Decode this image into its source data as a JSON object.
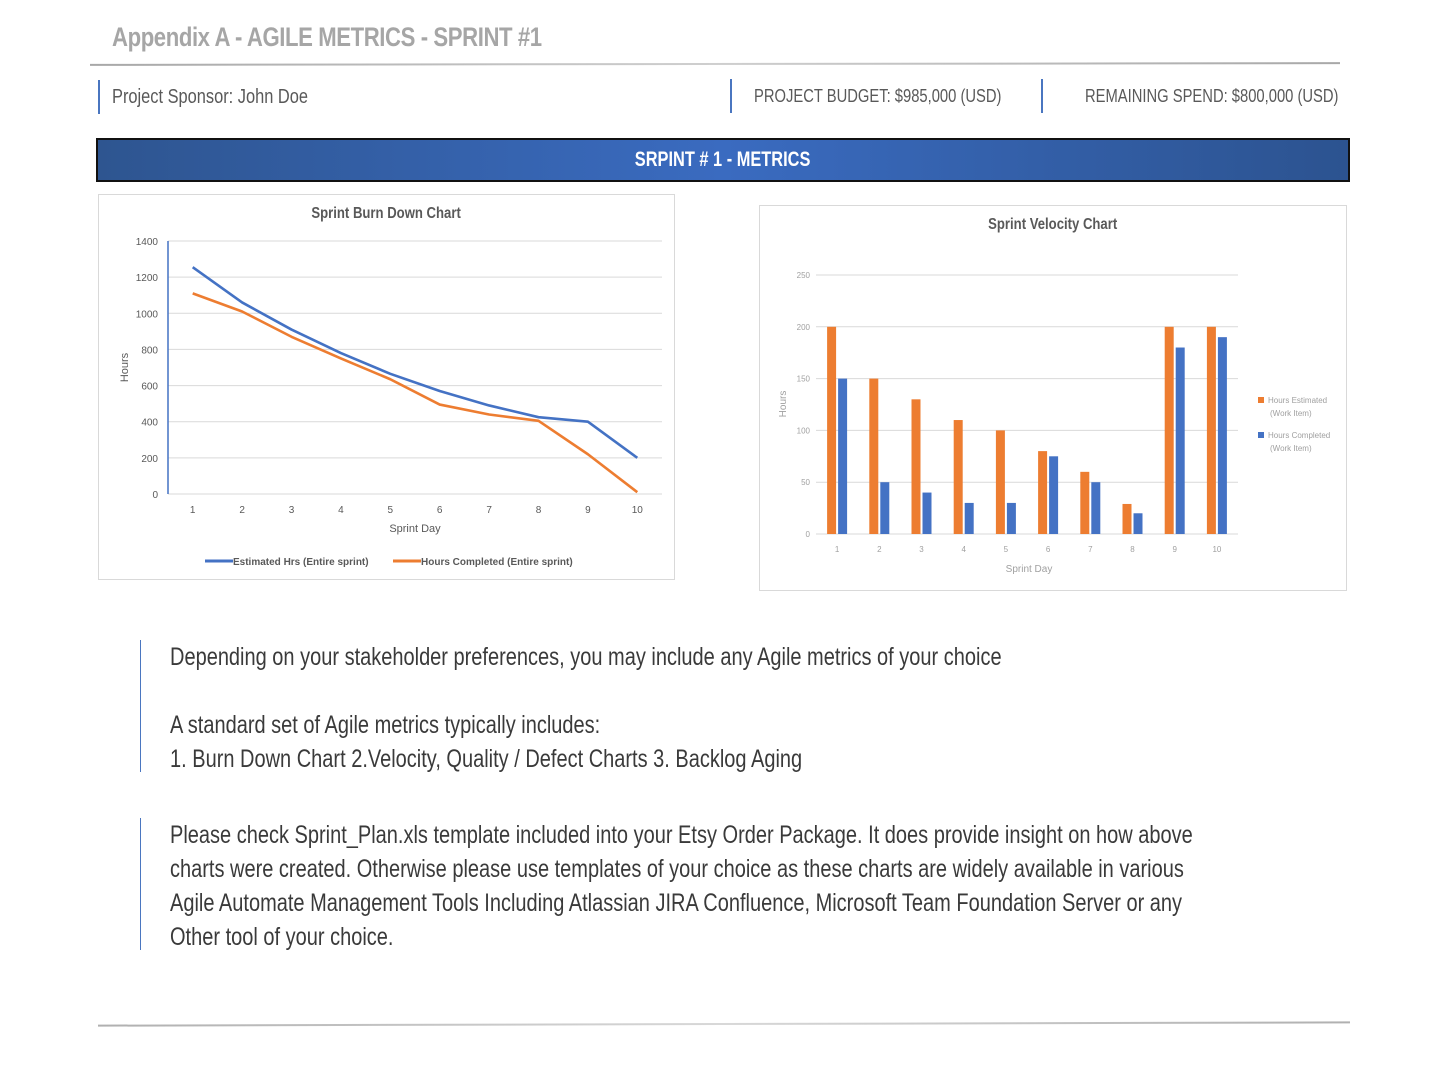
{
  "header": {
    "title": "Appendix A - AGILE METRICS - SPRINT #1",
    "sponsor": "Project Sponsor:  John Doe",
    "budget": "PROJECT BUDGET:  $985,000 (USD)",
    "remaining": "REMAINING SPEND:  $800,000 (USD)"
  },
  "banner": {
    "title": "SRPINT # 1 - METRICS"
  },
  "colors": {
    "blue": "#4472c4",
    "orange": "#ed7d31",
    "banner": "#3a6bc0",
    "accent_rule": "#4a76c0"
  },
  "burndown": {
    "title": "Sprint Burn Down Chart",
    "ylabel": "Hours",
    "xlabel": "Sprint Day",
    "legend": [
      "Estimated Hrs (Entire sprint)",
      "Hours Completed (Entire sprint)"
    ]
  },
  "velocity": {
    "title": "Sprint Velocity Chart",
    "ylabel": "Hours",
    "xlabel": "Sprint Day",
    "legend": [
      "Hours Estimated",
      "(Work Item)",
      "Hours Completed",
      "(Work Item)"
    ]
  },
  "body": {
    "para1": "Depending on your stakeholder preferences, you may include any Agile metrics of your choice",
    "para2_line1": "A standard set of Agile metrics typically includes:",
    "para2_line2": "1. Burn Down Chart  2.Velocity, Quality / Defect Charts  3. Backlog Aging",
    "para3_lines": [
      "Please check Sprint_Plan.xls template included into your Etsy Order Package. It does provide insight on how above",
      "charts were created. Otherwise please use templates of your choice as these charts are widely available in various",
      "Agile Automate Management Tools Including Atlassian JIRA Confluence, Microsoft Team Foundation Server or any",
      "Other tool of your choice."
    ]
  },
  "chart_data": [
    {
      "type": "line",
      "title": "Sprint Burn Down Chart",
      "xlabel": "Sprint Day",
      "ylabel": "Hours",
      "x": [
        1,
        2,
        3,
        4,
        5,
        6,
        7,
        8,
        9,
        10
      ],
      "ylim": [
        0,
        1400
      ],
      "yticks": [
        0,
        200,
        400,
        600,
        800,
        1000,
        1200,
        1400
      ],
      "grid": true,
      "legend_position": "bottom",
      "series": [
        {
          "name": "Estimated Hrs (Entire sprint)",
          "color": "#4472c4",
          "values": [
            1255,
            1060,
            910,
            780,
            665,
            570,
            490,
            425,
            400,
            200
          ]
        },
        {
          "name": "Hours Completed (Entire sprint)",
          "color": "#ed7d31",
          "values": [
            1110,
            1010,
            870,
            750,
            635,
            495,
            440,
            405,
            220,
            10
          ]
        }
      ]
    },
    {
      "type": "bar",
      "title": "Sprint Velocity Chart",
      "xlabel": "Sprint Day",
      "ylabel": "Hours",
      "categories": [
        "1",
        "2",
        "3",
        "4",
        "5",
        "6",
        "7",
        "8",
        "9",
        "10"
      ],
      "ylim": [
        0,
        250
      ],
      "yticks": [
        0,
        50,
        100,
        150,
        200,
        250
      ],
      "grid": true,
      "legend_position": "right",
      "series": [
        {
          "name": "Hours Estimated (Work Item)",
          "color": "#ed7d31",
          "values": [
            200,
            150,
            130,
            110,
            100,
            80,
            60,
            29,
            200,
            200
          ]
        },
        {
          "name": "Hours Completed (Work Item)",
          "color": "#4472c4",
          "values": [
            150,
            50,
            40,
            30,
            30,
            75,
            50,
            20,
            180,
            190
          ]
        }
      ]
    }
  ]
}
